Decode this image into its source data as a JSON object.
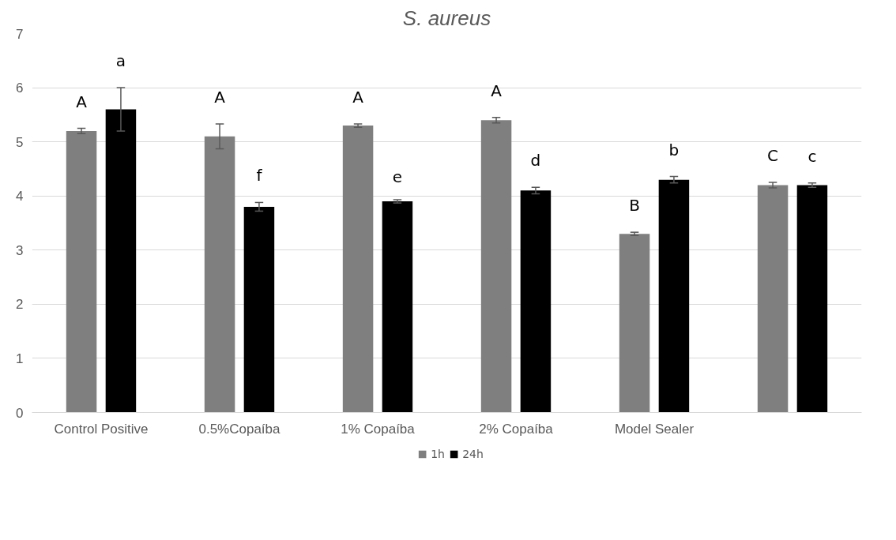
{
  "chart_data": {
    "type": "bar",
    "title": "S. aureus",
    "categories": [
      "Control Positive",
      "0.5%Copaíba",
      "1% Copaíba",
      "2% Copaíba",
      "Model Sealer",
      null
    ],
    "series": [
      {
        "name": "1h",
        "color": "#7f7f7f",
        "values": [
          5.2,
          5.1,
          5.3,
          5.4,
          3.3,
          4.2
        ],
        "errors": [
          0.05,
          0.23,
          0.03,
          0.05,
          0.03,
          0.05
        ],
        "value_labels": [
          "A",
          "A",
          "A",
          "A",
          "B",
          "C"
        ]
      },
      {
        "name": "24h",
        "color": "#000000",
        "values": [
          5.6,
          3.8,
          3.9,
          4.1,
          4.3,
          4.2
        ],
        "errors": [
          0.4,
          0.08,
          0.03,
          0.06,
          0.06,
          0.04
        ],
        "value_labels": [
          "a",
          "f",
          "e",
          "d",
          "b",
          "c"
        ]
      }
    ],
    "ylim": [
      0,
      7
    ],
    "yticks": [
      0,
      1,
      2,
      3,
      4,
      5,
      6,
      7
    ],
    "grid": "y",
    "legend": "bottom"
  }
}
